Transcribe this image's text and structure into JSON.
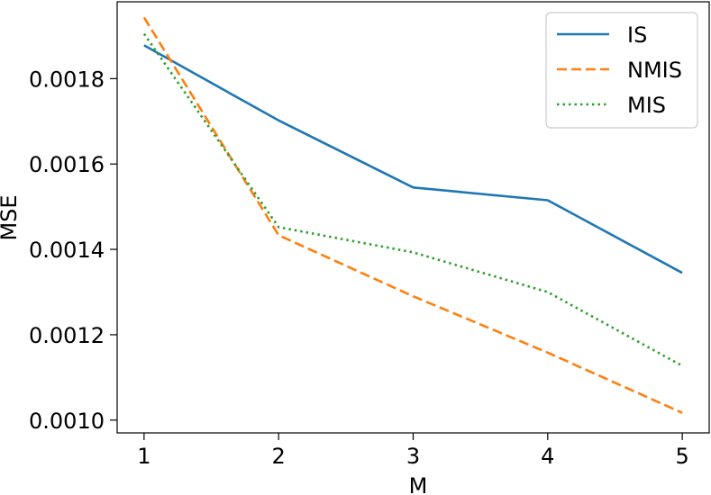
{
  "chart_data": {
    "type": "line",
    "title": "",
    "xlabel": "M",
    "ylabel": "MSE",
    "x": [
      1,
      2,
      3,
      4,
      5
    ],
    "xlim": [
      0.8,
      5.2
    ],
    "ylim": [
      0.00097,
      0.00198
    ],
    "xticks": [
      "1",
      "2",
      "3",
      "4",
      "5"
    ],
    "yticks": [
      "0.0010",
      "0.0012",
      "0.0014",
      "0.0016",
      "0.0018"
    ],
    "ytick_values": [
      0.001,
      0.0012,
      0.0014,
      0.0016,
      0.0018
    ],
    "grid": false,
    "legend_position": "top-right",
    "series": [
      {
        "name": "IS",
        "color": "#1f77b4",
        "style": "solid",
        "values": [
          0.001878,
          0.001702,
          0.001545,
          0.001515,
          0.001345
        ]
      },
      {
        "name": "NMIS",
        "color": "#ff7f0e",
        "style": "dashed",
        "values": [
          0.001943,
          0.001433,
          0.00129,
          0.001158,
          0.001017
        ]
      },
      {
        "name": "MIS",
        "color": "#2ca02c",
        "style": "dotted",
        "values": [
          0.001905,
          0.001452,
          0.001393,
          0.0013,
          0.001127
        ]
      }
    ]
  }
}
